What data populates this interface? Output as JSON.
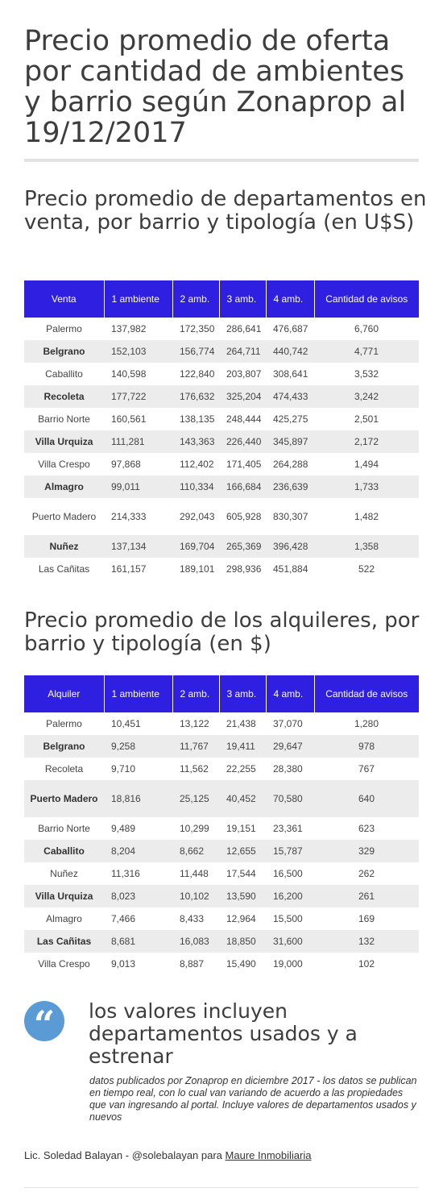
{
  "main_title": "Precio promedio de oferta por cantidad de ambientes y barrio según Zonaprop al 19/12/2017",
  "sales": {
    "title": "Precio promedio de departamentos en venta, por barrio y tipología (en U$S)",
    "headers": [
      "Venta",
      "1 ambiente",
      "2 amb.",
      "3 amb.",
      "4 amb.",
      "Cantidad de avisos"
    ],
    "rows": [
      [
        "Palermo",
        "137,982",
        "172,350",
        "286,641",
        "476,687",
        "6,760"
      ],
      [
        "Belgrano",
        "152,103",
        "156,774",
        "264,711",
        "440,742",
        "4,771"
      ],
      [
        "Caballito",
        "140,598",
        "122,840",
        "203,807",
        "308,641",
        "3,532"
      ],
      [
        "Recoleta",
        "177,722",
        "176,632",
        "325,204",
        "474,433",
        "3,242"
      ],
      [
        "Barrio Norte",
        "160,561",
        "138,135",
        "248,444",
        "425,275",
        "2,501"
      ],
      [
        "Villa Urquiza",
        "111,281",
        "143,363",
        "226,440",
        "345,897",
        "2,172"
      ],
      [
        "Villa Crespo",
        "97,868",
        "112,402",
        "171,405",
        "264,288",
        "1,494"
      ],
      [
        "Almagro",
        "99,011",
        "110,334",
        "166,684",
        "236,639",
        "1,733"
      ],
      [
        "Puerto Madero",
        "214,333",
        "292,043",
        "605,928",
        "830,307",
        "1,482"
      ],
      [
        "Nuñez",
        "137,134",
        "169,704",
        "265,369",
        "396,428",
        "1,358"
      ],
      [
        "Las Cañitas",
        "161,157",
        "189,101",
        "298,936",
        "451,884",
        "522"
      ]
    ]
  },
  "rent": {
    "title": "Precio promedio de los alquileres, por barrio y tipología (en $)",
    "headers": [
      "Alquiler",
      "1 ambiente",
      "2 amb.",
      "3 amb.",
      "4 amb.",
      "Cantidad de avisos"
    ],
    "rows": [
      [
        "Palermo",
        "10,451",
        "13,122",
        "21,438",
        "37,070",
        "1,280"
      ],
      [
        "Belgrano",
        "9,258",
        "11,767",
        "19,411",
        "29,647",
        "978"
      ],
      [
        "Recoleta",
        "9,710",
        "11,562",
        "22,255",
        "28,380",
        "767"
      ],
      [
        "Puerto Madero",
        "18,816",
        "25,125",
        "40,452",
        "70,580",
        "640"
      ],
      [
        "Barrio Norte",
        "9,489",
        "10,299",
        "19,151",
        "23,361",
        "623"
      ],
      [
        "Caballito",
        "8,204",
        "8,662",
        "12,655",
        "15,787",
        "329"
      ],
      [
        "Nuñez",
        "11,316",
        "11,448",
        "17,544",
        "16,500",
        "262"
      ],
      [
        "Villa Urquiza",
        "8,023",
        "10,102",
        "13,590",
        "16,200",
        "261"
      ],
      [
        "Almagro",
        "7,466",
        "8,433",
        "12,964",
        "15,500",
        "169"
      ],
      [
        "Las Cañitas",
        "8,681",
        "16,083",
        "18,850",
        "31,600",
        "132"
      ],
      [
        "Villa Crespo",
        "9,013",
        "8,887",
        "15,490",
        "19,000",
        "102"
      ]
    ]
  },
  "quote": {
    "icon": "quote-icon",
    "text": "los valores incluyen departamentos usados y a estrenar",
    "note": "datos publicados por Zonaprop en diciembre 2017  - los datos se publican en tiempo real, con lo cual van variando de acuerdo a las propiedades que van ingresando al portal. Incluye  valores de departamentos usados y nuevos"
  },
  "footer": {
    "author": "Lic. Soledad Balayan  - @solebalayan para ",
    "link_text": "Maure Inmobiliaria"
  },
  "colors": {
    "header_bg": "#2f1fe0",
    "stripe": "#ececec",
    "quote_circle": "#5b9bd5"
  }
}
